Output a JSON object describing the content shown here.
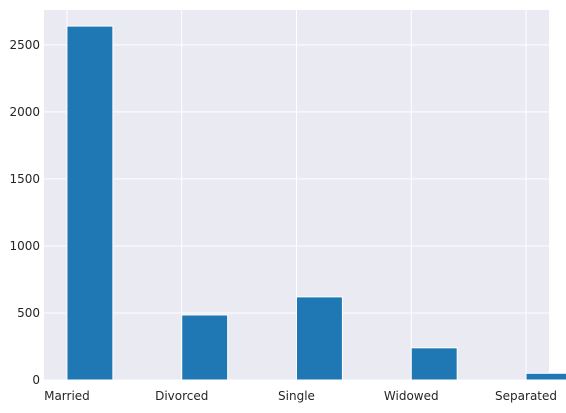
{
  "chart_data": {
    "type": "bar",
    "categories": [
      "Married",
      "Divorced",
      "Single",
      "Widowed",
      "Separated"
    ],
    "values": [
      2640,
      485,
      620,
      240,
      50
    ],
    "ylim": [
      0,
      2760
    ],
    "y_ticks": [
      0,
      500,
      1000,
      1500,
      2000,
      2500
    ],
    "grid": true,
    "colors": {
      "bar": "#1f77b4",
      "background": "#eaeaf2",
      "grid": "#ffffff"
    }
  }
}
